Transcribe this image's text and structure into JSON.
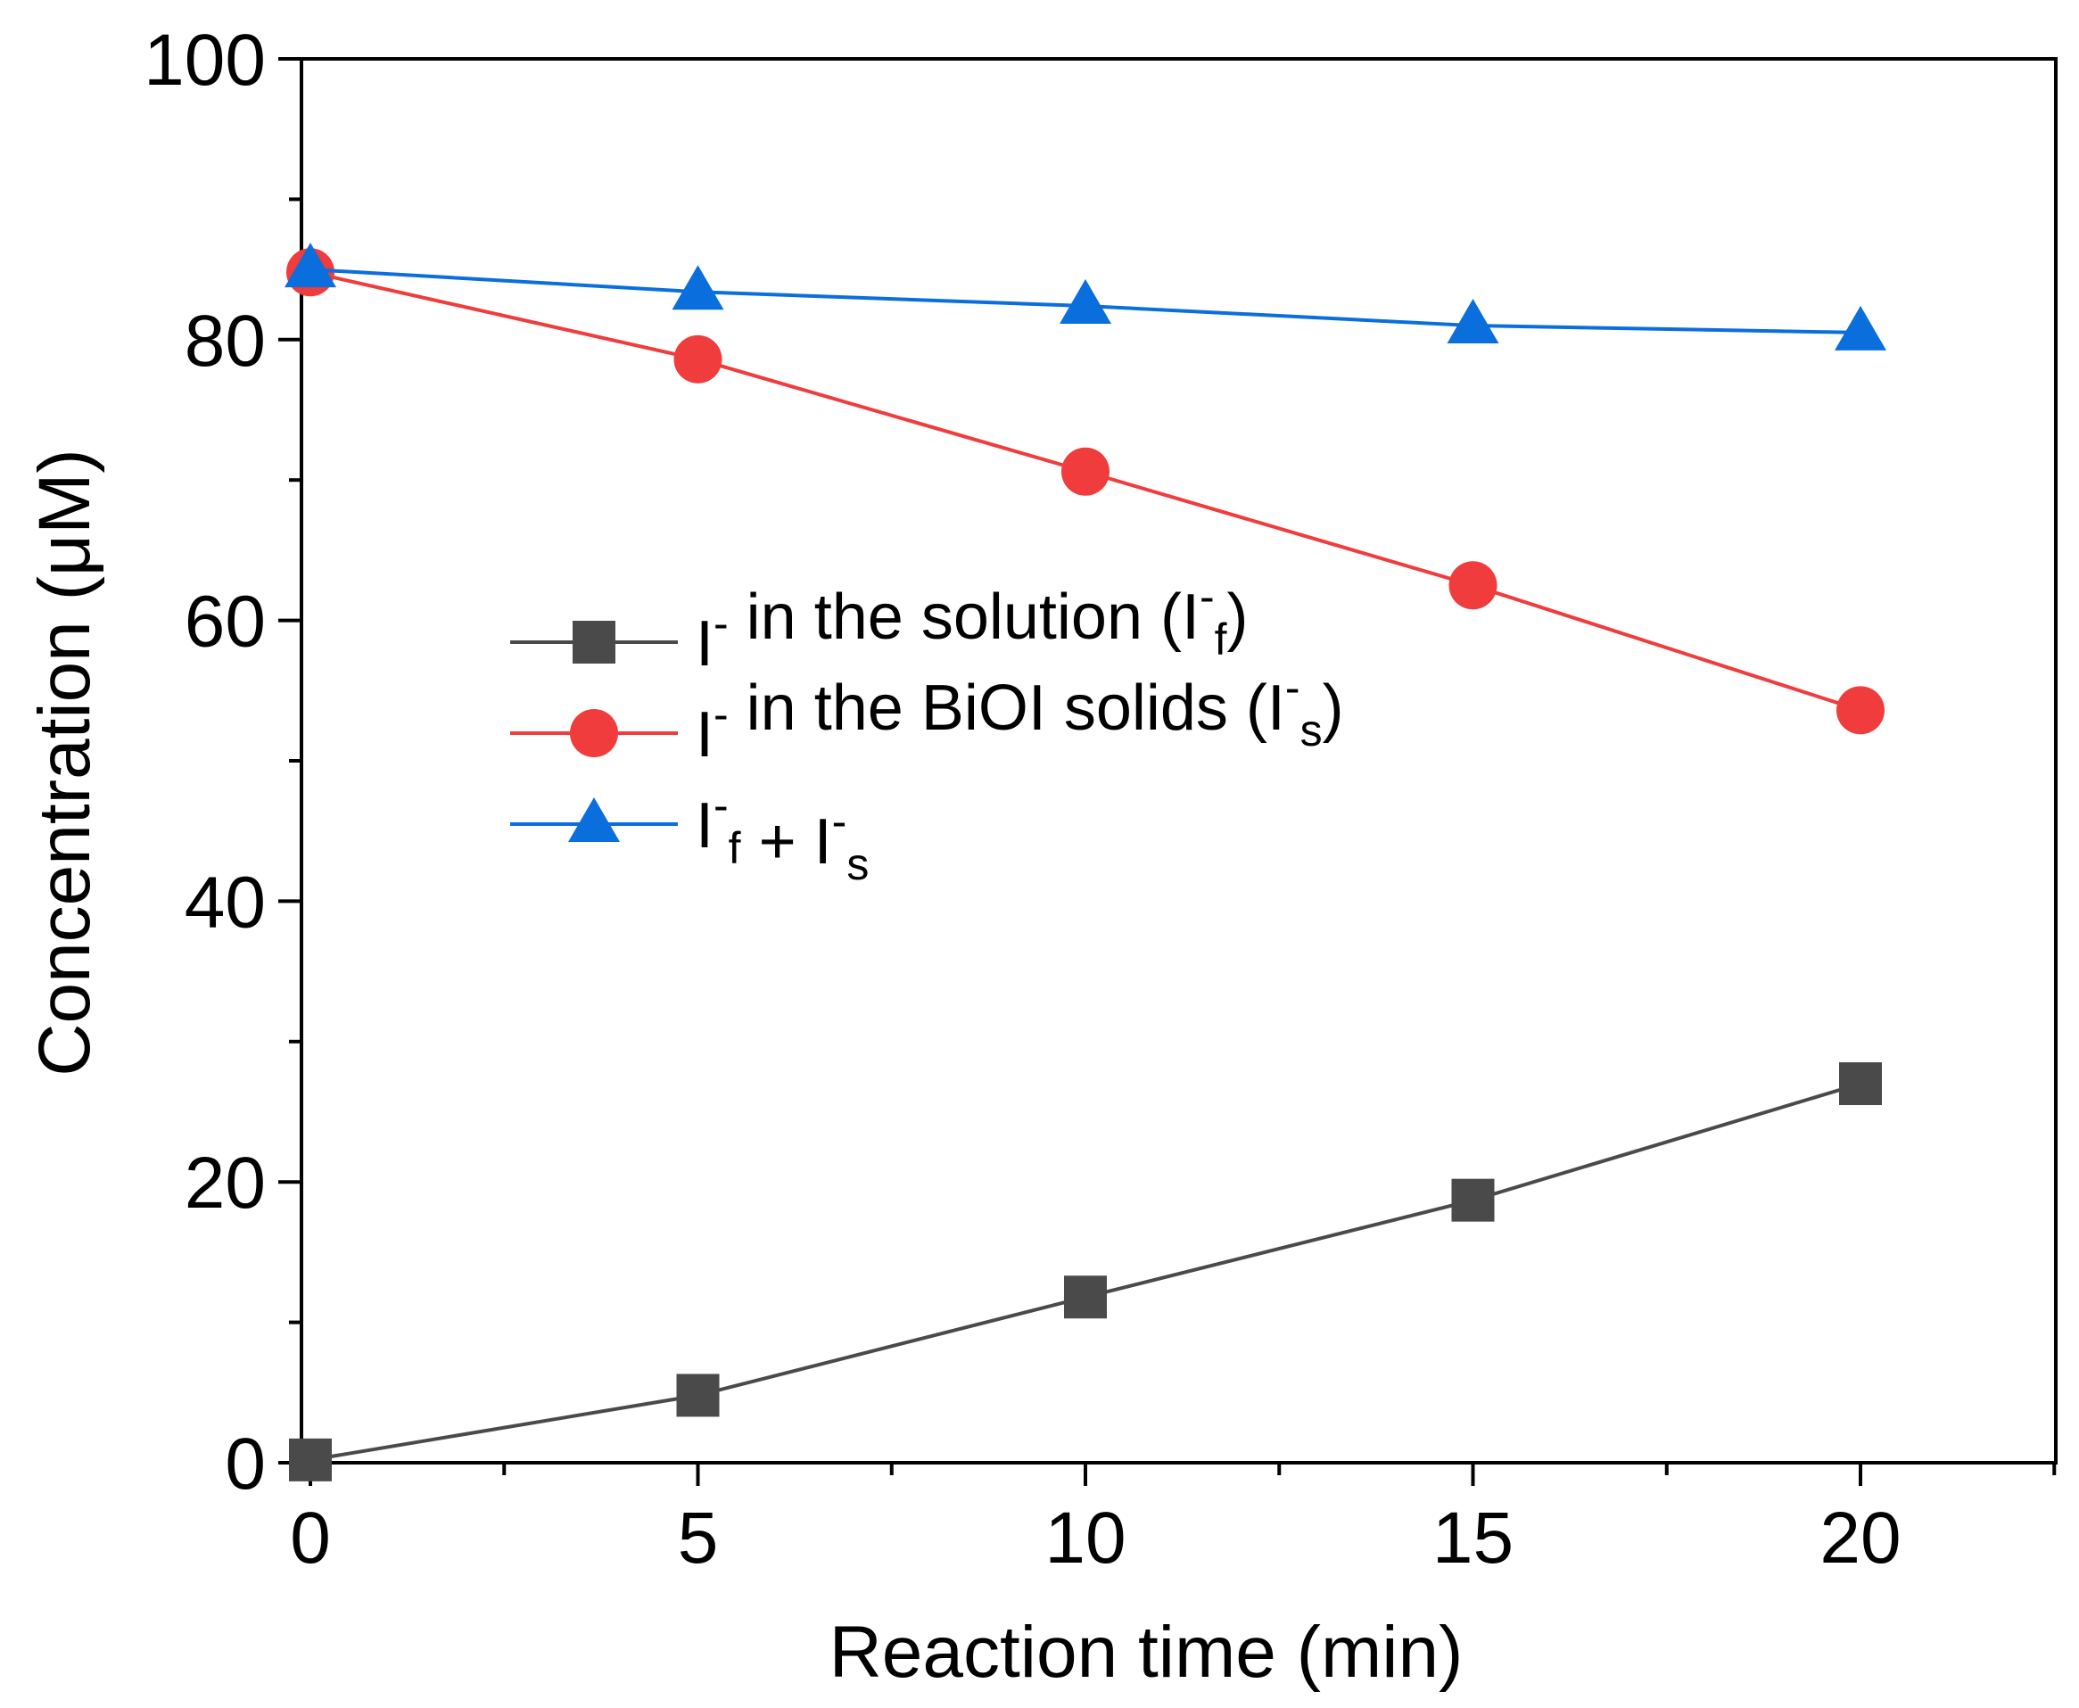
{
  "chart_data": {
    "type": "line",
    "xlabel": "Reaction time (min)",
    "ylabel": "Concentration (μM)",
    "xlim": [
      0,
      22.5
    ],
    "ylim": [
      0,
      100
    ],
    "x_ticks": [
      0,
      5,
      10,
      15,
      20
    ],
    "x_minor_ticks": [
      2.5,
      7.5,
      12.5,
      17.5,
      22.5
    ],
    "y_ticks": [
      0,
      20,
      40,
      60,
      80,
      100
    ],
    "y_minor_ticks": [
      10,
      30,
      50,
      70,
      90
    ],
    "x_tick_labels": [
      "0",
      "5",
      "10",
      "15",
      "20"
    ],
    "y_tick_labels": [
      "0",
      "20",
      "40",
      "60",
      "80",
      "100"
    ],
    "legend_position": "center-left",
    "series": [
      {
        "name": "I⁻ in the solution (I⁻f)",
        "legend": {
          "base": "I",
          "sup": "-",
          "text": " in the solution (",
          "base2": "I",
          "sup2": "-",
          "sub2": "f",
          "close": ")"
        },
        "marker": "square",
        "color": "#4a4a4a",
        "x": [
          0,
          5,
          10,
          15,
          20
        ],
        "values": [
          0.2,
          4.8,
          11.8,
          18.7,
          27.0
        ]
      },
      {
        "name": "I⁻ in the BiOI solids (I⁻s)",
        "legend": {
          "base": "I",
          "sup": "-",
          "text": " in the BiOI solids (",
          "base2": "I",
          "sup2": "-",
          "sub2": "s",
          "close": ")"
        },
        "marker": "circle",
        "color": "#f03c3c",
        "x": [
          0,
          5,
          10,
          15,
          20
        ],
        "values": [
          84.8,
          78.6,
          70.6,
          62.5,
          53.6
        ]
      },
      {
        "name": "I⁻f + I⁻s",
        "legend": {
          "base": "I",
          "sup": "-",
          "sub": "f",
          "text": " + ",
          "base2": "I",
          "sup2": "-",
          "sub2": "s",
          "close": ""
        },
        "marker": "triangle",
        "color": "#0a6edc",
        "x": [
          0,
          5,
          10,
          15,
          20
        ],
        "values": [
          85.0,
          83.4,
          82.4,
          81.0,
          80.5
        ]
      }
    ]
  }
}
